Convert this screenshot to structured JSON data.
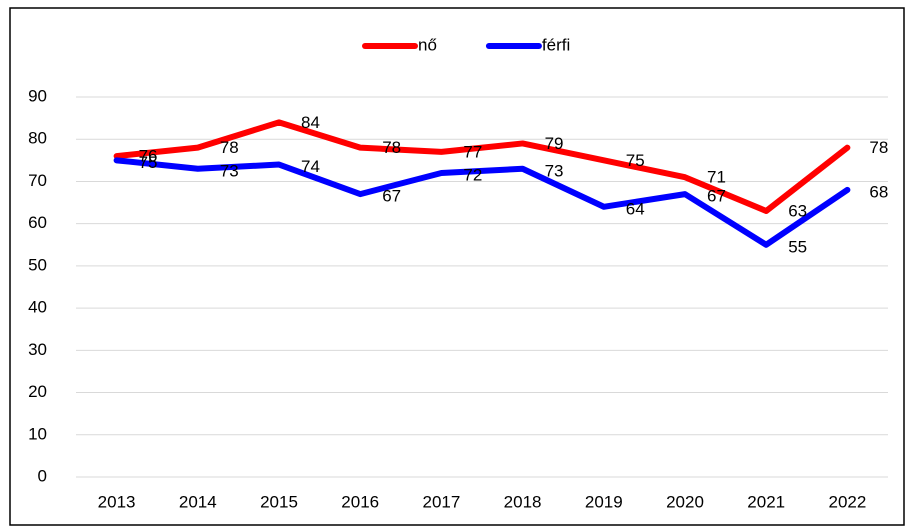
{
  "chart_data": {
    "type": "line",
    "categories": [
      "2013",
      "2014",
      "2015",
      "2016",
      "2017",
      "2018",
      "2019",
      "2020",
      "2021",
      "2022"
    ],
    "series": [
      {
        "name": "nő",
        "color": "#ff0000",
        "values": [
          76,
          78,
          84,
          78,
          77,
          79,
          75,
          71,
          63,
          78
        ]
      },
      {
        "name": "férfi",
        "color": "#0000ff",
        "values": [
          75,
          73,
          74,
          67,
          72,
          73,
          64,
          67,
          55,
          68
        ]
      }
    ],
    "ylim": [
      0,
      90
    ],
    "yticks": [
      0,
      10,
      20,
      30,
      40,
      50,
      60,
      70,
      80,
      90
    ],
    "grid": true,
    "legend": "top"
  }
}
